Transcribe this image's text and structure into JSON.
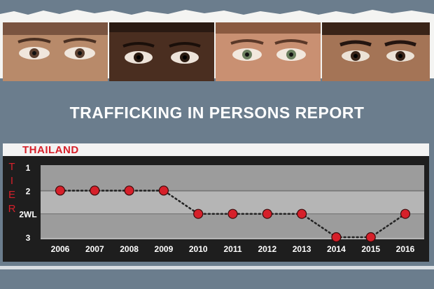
{
  "header": {
    "title": "TRAFFICKING IN PERSONS REPORT"
  },
  "banner": {
    "faces": [
      "face-1",
      "face-2",
      "face-3",
      "face-4"
    ]
  },
  "chart_data": {
    "type": "line",
    "title": "THAILAND",
    "ylabel": "TIER",
    "categories": [
      "2006",
      "2007",
      "2008",
      "2009",
      "2010",
      "2011",
      "2012",
      "2013",
      "2014",
      "2015",
      "2016"
    ],
    "y_ticks": [
      "1",
      "2",
      "2WL",
      "3"
    ],
    "series": [
      {
        "values": [
          "2",
          "2",
          "2",
          "2",
          "2WL",
          "2WL",
          "2WL",
          "2WL",
          "3",
          "3",
          "2WL"
        ]
      }
    ],
    "grid": true,
    "colors": {
      "marker": "#d6202a",
      "line": "#222222",
      "band_dark": "#9c9c9c",
      "band_light": "#b5b5b5"
    }
  }
}
